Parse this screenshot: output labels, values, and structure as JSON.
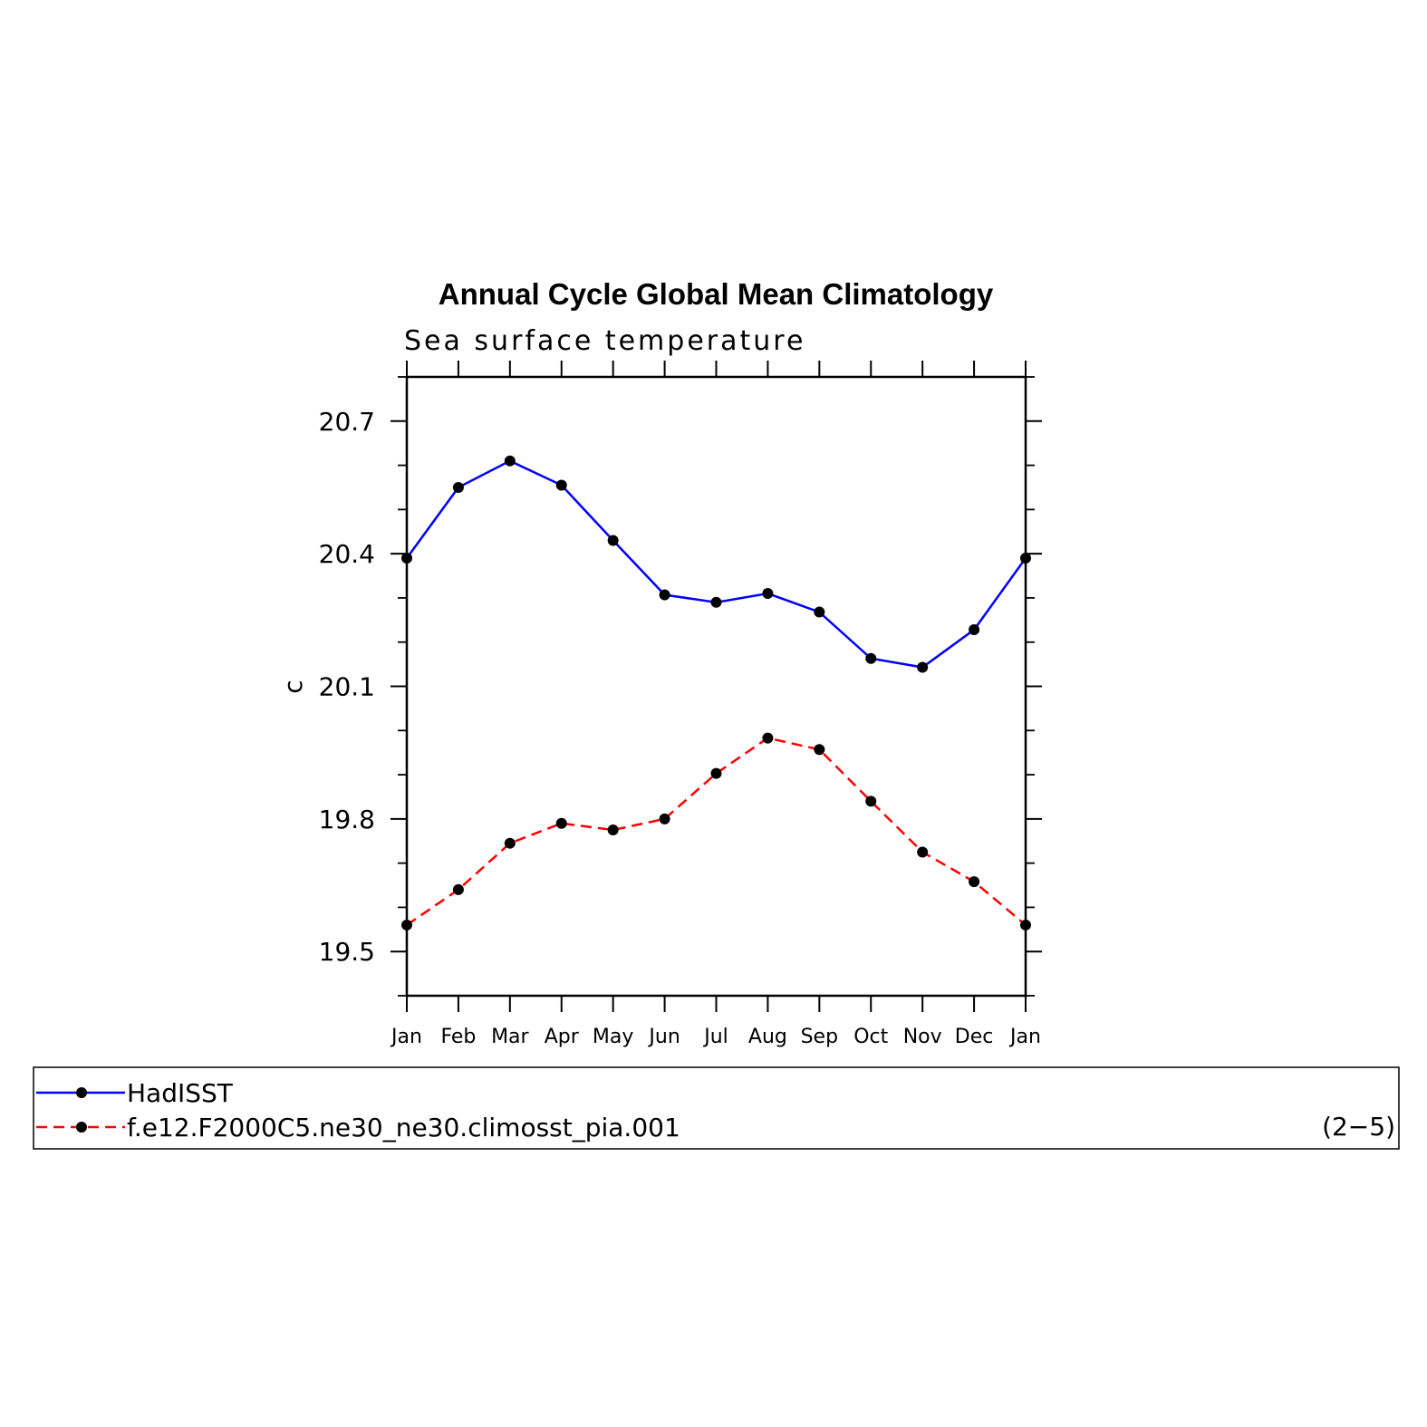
{
  "chart_data": {
    "type": "line",
    "title": "Annual Cycle Global Mean Climatology",
    "subtitle": "Sea surface temperature",
    "xlabel": "",
    "ylabel": "c",
    "categories": [
      "Jan",
      "Feb",
      "Mar",
      "Apr",
      "May",
      "Jun",
      "Jul",
      "Aug",
      "Sep",
      "Oct",
      "Nov",
      "Dec",
      "Jan"
    ],
    "y_ticks": [
      "20.7",
      "20.4",
      "20.1",
      "19.8",
      "19.5"
    ],
    "y_tick_values": [
      20.7,
      20.4,
      20.1,
      19.8,
      19.5
    ],
    "ylim": [
      19.4,
      20.8
    ],
    "grid": false,
    "legend_position": "bottom",
    "series": [
      {
        "name": "HadISST",
        "color": "#0000ff",
        "dash": "solid",
        "values": [
          20.39,
          20.55,
          20.61,
          20.555,
          20.43,
          20.307,
          20.29,
          20.31,
          20.268,
          20.163,
          20.143,
          20.228,
          20.39
        ]
      },
      {
        "name": "f.e12.F2000C5.ne30_ne30.climosst_pia.001",
        "color": "#ff0000",
        "dash": "dashed",
        "values": [
          19.56,
          19.64,
          19.745,
          19.79,
          19.775,
          19.8,
          19.903,
          19.983,
          19.957,
          19.84,
          19.725,
          19.658,
          19.56
        ]
      }
    ],
    "panel_label": "(2−5)"
  }
}
